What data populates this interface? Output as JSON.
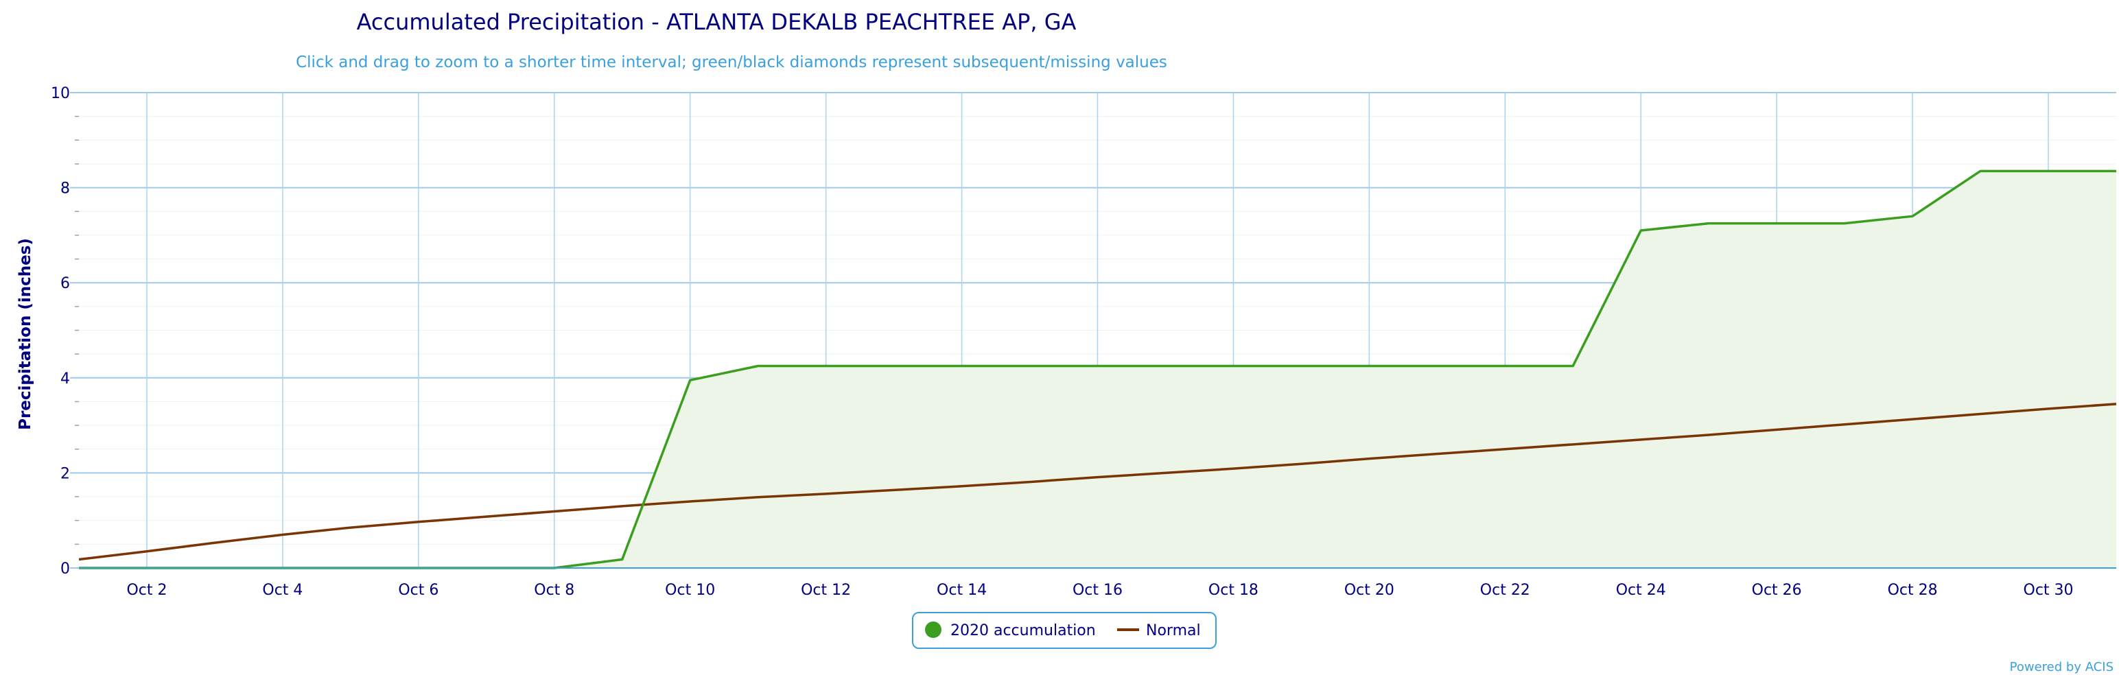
{
  "chart_data": {
    "type": "line",
    "title": "Accumulated Precipitation - ATLANTA DEKALB PEACHTREE AP, GA",
    "subtitle": "Click and drag to zoom to a shorter time interval; green/black diamonds represent subsequent/missing values",
    "xlabel": "",
    "ylabel": "Precipitation (inches)",
    "ylim": [
      0,
      10
    ],
    "y_ticks": [
      "0",
      "2",
      "4",
      "6",
      "8",
      "10"
    ],
    "x_tick_labels": [
      "Oct 2",
      "Oct 4",
      "Oct 6",
      "Oct 8",
      "Oct 10",
      "Oct 12",
      "Oct 14",
      "Oct 16",
      "Oct 18",
      "Oct 20",
      "Oct 22",
      "Oct 24",
      "Oct 26",
      "Oct 28",
      "Oct 30"
    ],
    "x_days": [
      1,
      2,
      3,
      4,
      5,
      6,
      7,
      8,
      9,
      10,
      11,
      12,
      13,
      14,
      15,
      16,
      17,
      18,
      19,
      20,
      21,
      22,
      23,
      24,
      25,
      26,
      27,
      28,
      29,
      30,
      31
    ],
    "grid": true,
    "legend_position": "bottom-center",
    "series": [
      {
        "name": "2020 accumulation",
        "color": "#3c9e1f",
        "fill": "#ecf5e8",
        "marker": "circle",
        "values": [
          0,
          0,
          0,
          0,
          0,
          0,
          0,
          0,
          0.18,
          3.95,
          4.25,
          4.25,
          4.25,
          4.25,
          4.25,
          4.25,
          4.25,
          4.25,
          4.25,
          4.25,
          4.25,
          4.25,
          4.25,
          7.1,
          7.25,
          7.25,
          7.25,
          7.4,
          8.35,
          8.35,
          8.35
        ]
      },
      {
        "name": "Normal",
        "color": "#7b3403",
        "marker": "line",
        "values": [
          0.18,
          0.35,
          0.53,
          0.7,
          0.85,
          0.97,
          1.08,
          1.19,
          1.3,
          1.4,
          1.49,
          1.56,
          1.64,
          1.72,
          1.81,
          1.91,
          2.0,
          2.09,
          2.19,
          2.3,
          2.4,
          2.5,
          2.6,
          2.7,
          2.8,
          2.91,
          3.02,
          3.13,
          3.24,
          3.35,
          3.45
        ]
      }
    ]
  },
  "credit": "Powered by ACIS"
}
